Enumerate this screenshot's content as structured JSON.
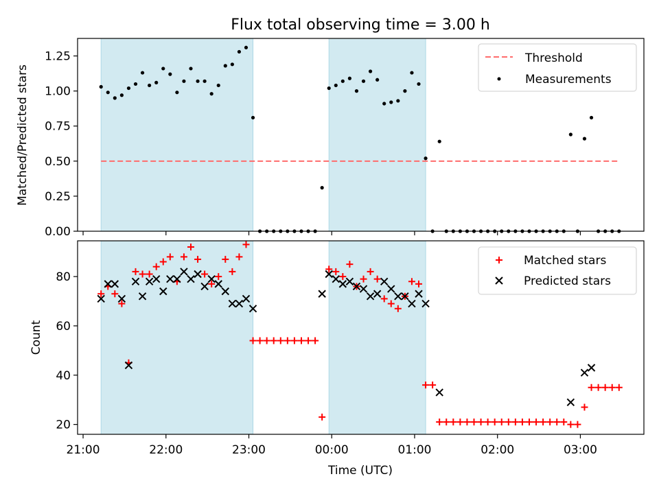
{
  "title": "Flux total observing time = 3.00 h",
  "xlabel": "Time (UTC)",
  "x_ticks": [
    "21:00",
    "22:00",
    "23:00",
    "00:00",
    "01:00",
    "02:00",
    "03:00"
  ],
  "colors": {
    "shade": "#add8e6",
    "threshold": "#ff6b6b",
    "measurements": "#000000",
    "matched": "#ff0000",
    "predicted": "#000000"
  },
  "chart_data": [
    {
      "type": "scatter",
      "ylabel": "Matched/Predicted stars",
      "ylim": [
        0,
        1.375
      ],
      "y_ticks": [
        "0.00",
        "0.25",
        "0.50",
        "0.75",
        "1.00",
        "1.25"
      ],
      "x_range": [
        "20:56",
        "03:46"
      ],
      "shaded_intervals": [
        [
          "21:13",
          "23:03"
        ],
        [
          "23:58",
          "01:08"
        ]
      ],
      "legend_position": "upper right",
      "threshold": {
        "name": "Threshold",
        "value": 0.5,
        "x": [
          "21:13",
          "03:28"
        ]
      },
      "series": [
        {
          "name": "Measurements",
          "points": [
            [
              "21:13",
              1.03
            ],
            [
              "21:18",
              0.99
            ],
            [
              "21:23",
              0.95
            ],
            [
              "21:28",
              0.97
            ],
            [
              "21:33",
              1.02
            ],
            [
              "21:38",
              1.05
            ],
            [
              "21:43",
              1.13
            ],
            [
              "21:48",
              1.04
            ],
            [
              "21:53",
              1.06
            ],
            [
              "21:58",
              1.16
            ],
            [
              "22:03",
              1.12
            ],
            [
              "22:08",
              0.99
            ],
            [
              "22:13",
              1.07
            ],
            [
              "22:18",
              1.16
            ],
            [
              "22:23",
              1.07
            ],
            [
              "22:28",
              1.07
            ],
            [
              "22:33",
              0.98
            ],
            [
              "22:38",
              1.04
            ],
            [
              "22:43",
              1.18
            ],
            [
              "22:48",
              1.19
            ],
            [
              "22:53",
              1.28
            ],
            [
              "22:58",
              1.31
            ],
            [
              "23:03",
              0.81
            ],
            [
              "23:08",
              0
            ],
            [
              "23:13",
              0
            ],
            [
              "23:18",
              0
            ],
            [
              "23:23",
              0
            ],
            [
              "23:28",
              0
            ],
            [
              "23:33",
              0
            ],
            [
              "23:38",
              0
            ],
            [
              "23:43",
              0
            ],
            [
              "23:48",
              0
            ],
            [
              "23:53",
              0.31
            ],
            [
              "23:58",
              1.02
            ],
            [
              "00:03",
              1.04
            ],
            [
              "00:08",
              1.07
            ],
            [
              "00:13",
              1.09
            ],
            [
              "00:18",
              1.0
            ],
            [
              "00:23",
              1.07
            ],
            [
              "00:28",
              1.14
            ],
            [
              "00:33",
              1.08
            ],
            [
              "00:38",
              0.91
            ],
            [
              "00:43",
              0.92
            ],
            [
              "00:48",
              0.93
            ],
            [
              "00:53",
              1.0
            ],
            [
              "00:58",
              1.13
            ],
            [
              "01:03",
              1.05
            ],
            [
              "01:08",
              0.52
            ],
            [
              "01:13",
              0
            ],
            [
              "01:18",
              0.64
            ],
            [
              "01:23",
              0
            ],
            [
              "01:28",
              0
            ],
            [
              "01:33",
              0
            ],
            [
              "01:38",
              0
            ],
            [
              "01:43",
              0
            ],
            [
              "01:48",
              0
            ],
            [
              "01:53",
              0
            ],
            [
              "01:58",
              0
            ],
            [
              "02:03",
              0
            ],
            [
              "02:08",
              0
            ],
            [
              "02:13",
              0
            ],
            [
              "02:18",
              0
            ],
            [
              "02:23",
              0
            ],
            [
              "02:28",
              0
            ],
            [
              "02:33",
              0
            ],
            [
              "02:38",
              0
            ],
            [
              "02:43",
              0
            ],
            [
              "02:48",
              0
            ],
            [
              "02:53",
              0.69
            ],
            [
              "02:58",
              0
            ],
            [
              "03:03",
              0.66
            ],
            [
              "03:08",
              0.81
            ],
            [
              "03:13",
              0
            ],
            [
              "03:18",
              0
            ],
            [
              "03:23",
              0
            ],
            [
              "03:28",
              0
            ]
          ]
        }
      ]
    },
    {
      "type": "scatter",
      "ylabel": "Count",
      "ylim": [
        16,
        94.5
      ],
      "y_ticks": [
        "20",
        "40",
        "60",
        "80"
      ],
      "x_range": [
        "20:56",
        "03:46"
      ],
      "shaded_intervals": [
        [
          "21:13",
          "23:03"
        ],
        [
          "23:58",
          "01:08"
        ]
      ],
      "legend_position": "upper right",
      "series": [
        {
          "name": "Matched stars",
          "marker": "+",
          "points": [
            [
              "21:13",
              73
            ],
            [
              "21:18",
              76
            ],
            [
              "21:23",
              73
            ],
            [
              "21:28",
              69
            ],
            [
              "21:33",
              45
            ],
            [
              "21:38",
              82
            ],
            [
              "21:43",
              81
            ],
            [
              "21:48",
              81
            ],
            [
              "21:53",
              84
            ],
            [
              "21:58",
              86
            ],
            [
              "22:03",
              88
            ],
            [
              "22:08",
              78
            ],
            [
              "22:13",
              88
            ],
            [
              "22:18",
              92
            ],
            [
              "22:23",
              87
            ],
            [
              "22:28",
              81
            ],
            [
              "22:33",
              77
            ],
            [
              "22:38",
              80
            ],
            [
              "22:43",
              87
            ],
            [
              "22:48",
              82
            ],
            [
              "22:53",
              88
            ],
            [
              "22:58",
              93
            ],
            [
              "23:03",
              54
            ],
            [
              "23:08",
              54
            ],
            [
              "23:13",
              54
            ],
            [
              "23:18",
              54
            ],
            [
              "23:23",
              54
            ],
            [
              "23:28",
              54
            ],
            [
              "23:33",
              54
            ],
            [
              "23:38",
              54
            ],
            [
              "23:43",
              54
            ],
            [
              "23:48",
              54
            ],
            [
              "23:53",
              23
            ],
            [
              "23:58",
              83
            ],
            [
              "00:03",
              82
            ],
            [
              "00:08",
              80
            ],
            [
              "00:13",
              85
            ],
            [
              "00:18",
              76
            ],
            [
              "00:23",
              79
            ],
            [
              "00:28",
              82
            ],
            [
              "00:33",
              79
            ],
            [
              "00:38",
              71
            ],
            [
              "00:43",
              69
            ],
            [
              "00:48",
              67
            ],
            [
              "00:53",
              72
            ],
            [
              "00:58",
              78
            ],
            [
              "01:03",
              77
            ],
            [
              "01:08",
              36
            ],
            [
              "01:13",
              36
            ],
            [
              "01:18",
              21
            ],
            [
              "01:23",
              21
            ],
            [
              "01:28",
              21
            ],
            [
              "01:33",
              21
            ],
            [
              "01:38",
              21
            ],
            [
              "01:43",
              21
            ],
            [
              "01:48",
              21
            ],
            [
              "01:53",
              21
            ],
            [
              "01:58",
              21
            ],
            [
              "02:03",
              21
            ],
            [
              "02:08",
              21
            ],
            [
              "02:13",
              21
            ],
            [
              "02:18",
              21
            ],
            [
              "02:23",
              21
            ],
            [
              "02:28",
              21
            ],
            [
              "02:33",
              21
            ],
            [
              "02:38",
              21
            ],
            [
              "02:43",
              21
            ],
            [
              "02:48",
              21
            ],
            [
              "02:53",
              20
            ],
            [
              "02:58",
              20
            ],
            [
              "03:03",
              27
            ],
            [
              "03:08",
              35
            ],
            [
              "03:13",
              35
            ],
            [
              "03:18",
              35
            ],
            [
              "03:23",
              35
            ],
            [
              "03:28",
              35
            ]
          ]
        },
        {
          "name": "Predicted stars",
          "marker": "x",
          "points": [
            [
              "21:13",
              71
            ],
            [
              "21:18",
              77
            ],
            [
              "21:23",
              77
            ],
            [
              "21:28",
              71
            ],
            [
              "21:33",
              44
            ],
            [
              "21:38",
              78
            ],
            [
              "21:43",
              72
            ],
            [
              "21:48",
              78
            ],
            [
              "21:53",
              79
            ],
            [
              "21:58",
              74
            ],
            [
              "22:03",
              79
            ],
            [
              "22:08",
              79
            ],
            [
              "22:13",
              82
            ],
            [
              "22:18",
              79
            ],
            [
              "22:23",
              81
            ],
            [
              "22:28",
              76
            ],
            [
              "22:33",
              79
            ],
            [
              "22:38",
              77
            ],
            [
              "22:43",
              74
            ],
            [
              "22:48",
              69
            ],
            [
              "22:53",
              69
            ],
            [
              "22:58",
              71
            ],
            [
              "23:03",
              67
            ],
            [
              "23:53",
              73
            ],
            [
              "23:58",
              81
            ],
            [
              "00:03",
              79
            ],
            [
              "00:08",
              77
            ],
            [
              "00:13",
              78
            ],
            [
              "00:18",
              76
            ],
            [
              "00:23",
              75
            ],
            [
              "00:28",
              72
            ],
            [
              "00:33",
              73
            ],
            [
              "00:38",
              78
            ],
            [
              "00:43",
              75
            ],
            [
              "00:48",
              72
            ],
            [
              "00:53",
              72
            ],
            [
              "00:58",
              69
            ],
            [
              "01:03",
              73
            ],
            [
              "01:08",
              69
            ],
            [
              "01:18",
              33
            ],
            [
              "02:53",
              29
            ],
            [
              "03:03",
              41
            ],
            [
              "03:08",
              43
            ]
          ]
        }
      ]
    }
  ]
}
